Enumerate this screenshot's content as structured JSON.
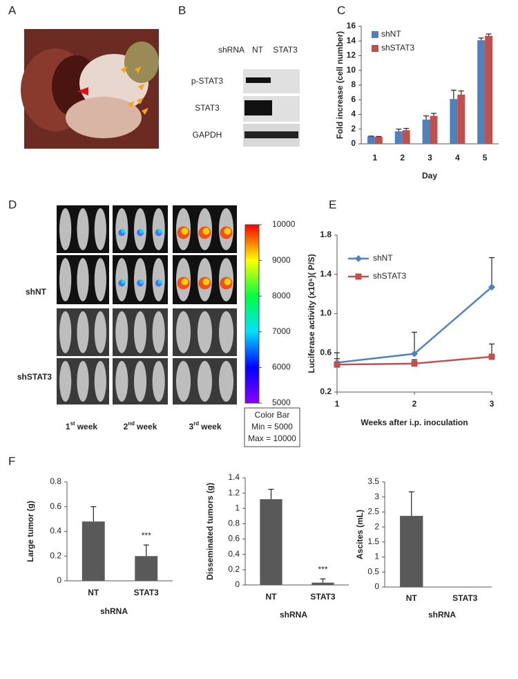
{
  "panels": {
    "a": "A",
    "b": "B",
    "c": "C",
    "d": "D",
    "e": "E",
    "f": "F"
  },
  "blot": {
    "header": "shRNA",
    "lanes": [
      "NT",
      "STAT3"
    ],
    "rows": [
      "p-STAT3",
      "STAT3",
      "GAPDH"
    ]
  },
  "imaging": {
    "groups": [
      "shNT",
      "shSTAT3"
    ],
    "weeks": [
      {
        "num": "1",
        "sup": "st",
        "text": "week"
      },
      {
        "num": "2",
        "sup": "nd",
        "text": "week"
      },
      {
        "num": "3",
        "sup": "rd",
        "text": "week"
      }
    ],
    "colorbar": {
      "lim": [
        5000,
        10000
      ],
      "ticks": [
        5000,
        6000,
        7000,
        8000,
        9000,
        10000
      ],
      "caption": "Color Bar",
      "min_label": "Min = 5000",
      "max_label": "Max = 10000"
    }
  },
  "chart_data": [
    {
      "type": "bar",
      "y_label": "Fold  increase (cell number)",
      "x_label": "Day",
      "categories": [
        "1",
        "2",
        "3",
        "4",
        "5"
      ],
      "series": [
        {
          "name": "shNT",
          "color": "#4f81bd",
          "values": [
            1.0,
            1.7,
            3.3,
            6.1,
            14.1
          ],
          "errors": [
            0.05,
            0.3,
            0.5,
            1.2,
            0.3
          ]
        },
        {
          "name": "shSTAT3",
          "color": "#c0504d",
          "values": [
            0.95,
            1.85,
            3.8,
            6.7,
            14.7
          ],
          "errors": [
            0.05,
            0.25,
            0.35,
            0.5,
            0.25
          ]
        }
      ],
      "ylim": [
        0,
        16
      ],
      "yticks": [
        0,
        2,
        4,
        6,
        8,
        10,
        12,
        14,
        16
      ],
      "legend": "upper left"
    },
    {
      "type": "line",
      "y_label": "Luciferase activity (x10⁶)( P/S)",
      "x_label": "Weeks after i.p. inoculation",
      "x": [
        1,
        2,
        3
      ],
      "series": [
        {
          "name": "shNT",
          "color": "#4f81bd",
          "marker": "diamond",
          "values": [
            0.5,
            0.59,
            1.27
          ],
          "errors": [
            0.1,
            0.22,
            0.3
          ]
        },
        {
          "name": "shSTAT3",
          "color": "#c0504d",
          "marker": "square",
          "values": [
            0.48,
            0.49,
            0.56
          ],
          "errors": [
            0.06,
            0.04,
            0.13
          ]
        }
      ],
      "xlim": [
        1,
        3
      ],
      "xticks": [
        1,
        2,
        3
      ],
      "ylim": [
        0.2,
        1.8
      ],
      "yticks": [
        0.2,
        0.6,
        {
          "value": 1.0,
          "label": "1.0"
        },
        1.4,
        1.8
      ],
      "legend": "upper left"
    },
    {
      "type": "bar",
      "y_label": "Large tumor (g)",
      "x_label": "shRNA",
      "categories": [
        "NT",
        "STAT3"
      ],
      "values": [
        0.48,
        0.2
      ],
      "errors": [
        0.12,
        0.09
      ],
      "color": "#595959",
      "annotation": "***",
      "ylim": [
        0,
        0.8
      ],
      "yticks": [
        0,
        0.2,
        0.4,
        0.6,
        0.8
      ]
    },
    {
      "type": "bar",
      "y_label": "Disseminated tumors (g)",
      "x_label": "shRNA",
      "categories": [
        "NT",
        "STAT3"
      ],
      "values": [
        1.12,
        0.03
      ],
      "errors": [
        0.13,
        0.05
      ],
      "color": "#595959",
      "annotation": "***",
      "ylim": [
        0,
        1.4
      ],
      "yticks": [
        0,
        0.2,
        0.4,
        0.6,
        0.8,
        1,
        1.2,
        1.4
      ]
    },
    {
      "type": "bar",
      "y_label": "Ascites  (mL)",
      "x_label": "shRNA",
      "categories": [
        "NT",
        "STAT3"
      ],
      "values": [
        2.37,
        0
      ],
      "errors": [
        0.8,
        0
      ],
      "color": "#595959",
      "ylim": [
        0,
        3.5
      ],
      "yticks": [
        0,
        0.5,
        1,
        1.5,
        2,
        2.5,
        3,
        3.5
      ]
    }
  ]
}
